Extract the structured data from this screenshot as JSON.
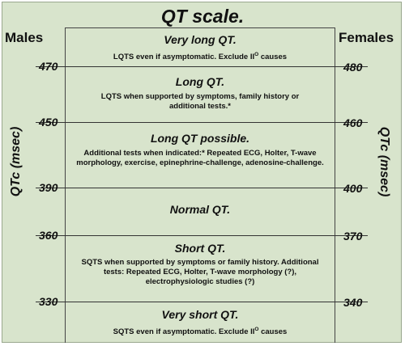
{
  "title": "QT scale.",
  "males_label": "Males",
  "females_label": "Females",
  "axis_label": "QTc (msec)",
  "male_ticks": [
    "470",
    "450",
    "390",
    "360",
    "330"
  ],
  "female_ticks": [
    "480",
    "460",
    "400",
    "370",
    "340"
  ],
  "zones": [
    {
      "title": "Very long QT.",
      "desc": "LQTS even if asymptomatic. Exclude II",
      "sup": "O",
      "desc_after": " causes"
    },
    {
      "title": "Long QT.",
      "desc": "LQTS when supported by symptoms, family history or additional tests.*"
    },
    {
      "title": "Long QT possible.",
      "desc": "Additional tests when indicated:* Repeated ECG, Holter, T-wave morphology, exercise, epinephrine-challenge, adenosine-challenge."
    },
    {
      "title": "Normal QT.",
      "desc": ""
    },
    {
      "title": "Short QT.",
      "desc": "SQTS when supported by symptoms or family history. Additional tests: Repeated ECG, Holter, T-wave morphology (?), electrophysiologic studies (?)"
    },
    {
      "title": "Very short QT.",
      "desc": "SQTS even if asymptomatic. Exclude II",
      "sup": "O",
      "desc_after": " causes"
    }
  ]
}
